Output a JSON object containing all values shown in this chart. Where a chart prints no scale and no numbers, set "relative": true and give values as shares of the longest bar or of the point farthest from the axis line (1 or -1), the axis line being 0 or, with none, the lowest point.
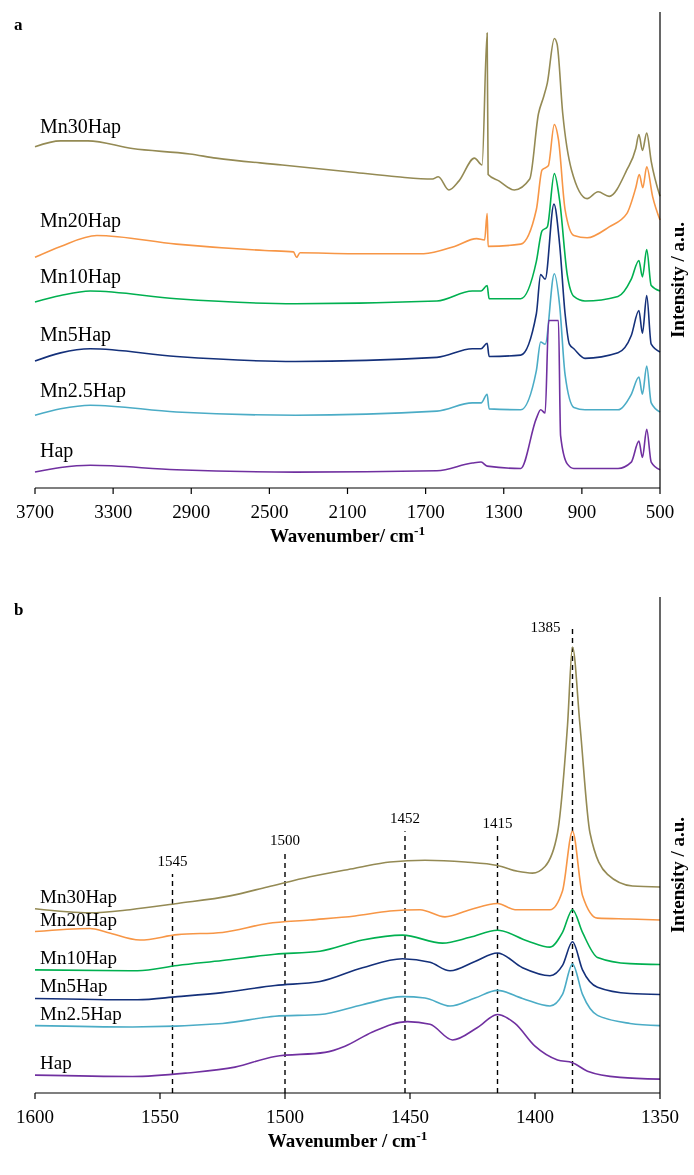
{
  "chart_data": [
    {
      "type": "line",
      "title": "a",
      "xlabel": "Wavenumber/ cm$^{-1}$",
      "ylabel": "Intensity / a.u.",
      "relative": true,
      "xlim": [
        3700,
        500
      ],
      "xticks": [
        3700,
        3300,
        2900,
        2500,
        2100,
        1700,
        1300,
        900,
        500
      ],
      "series": [
        {
          "name": "Mn30Hap",
          "color": "#948a54",
          "x": [
            3700,
            3569,
            3429,
            3202,
            2908,
            2773,
            2434,
            2072,
            1846,
            1665,
            1635,
            1581,
            1529,
            1450,
            1411,
            1385,
            1380,
            1325,
            1246,
            1167,
            1122,
            1095,
            1077,
            1041,
            1027,
            998,
            953,
            873,
            817,
            760,
            670,
            624,
            608,
            590,
            568,
            545,
            500
          ],
          "values": [
            0.75,
            0.763,
            0.763,
            0.746,
            0.734,
            0.725,
            0.71,
            0.694,
            0.684,
            0.679,
            0.684,
            0.655,
            0.675,
            0.725,
            0.71,
            1.0,
            0.689,
            0.675,
            0.655,
            0.679,
            0.823,
            0.861,
            0.89,
            0.988,
            0.976,
            0.823,
            0.699,
            0.636,
            0.651,
            0.641,
            0.699,
            0.746,
            0.777,
            0.742,
            0.78,
            0.718,
            0.641
          ]
        },
        {
          "name": "Mn20Hap",
          "color": "#f79646",
          "x": [
            3700,
            3569,
            3383,
            2976,
            2524,
            2377,
            2361,
            2343,
            2072,
            1710,
            1552,
            1439,
            1398,
            1385,
            1380,
            1213,
            1133,
            1104,
            1072,
            1041,
            1020,
            986,
            941,
            873,
            760,
            670,
            624,
            606,
            588,
            568,
            538,
            500
          ],
          "values": [
            0.507,
            0.531,
            0.555,
            0.536,
            0.522,
            0.519,
            0.507,
            0.517,
            0.515,
            0.515,
            0.531,
            0.548,
            0.545,
            0.603,
            0.531,
            0.536,
            0.612,
            0.699,
            0.708,
            0.799,
            0.766,
            0.612,
            0.555,
            0.55,
            0.574,
            0.603,
            0.66,
            0.689,
            0.66,
            0.706,
            0.641,
            0.589
          ]
        },
        {
          "name": "Mn10Hap",
          "color": "#00b050",
          "x": [
            3700,
            3569,
            3417,
            2976,
            2366,
            1642,
            1461,
            1416,
            1385,
            1375,
            1213,
            1133,
            1104,
            1077,
            1041,
            1014,
            975,
            941,
            884,
            715,
            647,
            608,
            590,
            568,
            545,
            500
          ],
          "values": [
            0.409,
            0.423,
            0.433,
            0.416,
            0.405,
            0.411,
            0.433,
            0.433,
            0.445,
            0.416,
            0.416,
            0.498,
            0.565,
            0.574,
            0.691,
            0.632,
            0.469,
            0.421,
            0.411,
            0.421,
            0.459,
            0.5,
            0.464,
            0.524,
            0.445,
            0.433
          ]
        },
        {
          "name": "Mn5Hap",
          "color": "#14307a",
          "x": [
            3700,
            3569,
            3417,
            2976,
            2366,
            1642,
            1461,
            1416,
            1385,
            1375,
            1213,
            1133,
            1111,
            1088,
            1043,
            1014,
            986,
            964,
            941,
            884,
            715,
            647,
            608,
            590,
            568,
            545,
            500
          ],
          "values": [
            0.279,
            0.297,
            0.306,
            0.289,
            0.278,
            0.287,
            0.306,
            0.306,
            0.318,
            0.289,
            0.292,
            0.383,
            0.469,
            0.459,
            0.624,
            0.536,
            0.383,
            0.316,
            0.306,
            0.285,
            0.297,
            0.335,
            0.39,
            0.34,
            0.423,
            0.316,
            0.299
          ]
        },
        {
          "name": "Mn2.5Hap",
          "color": "#4bacc6",
          "x": [
            3700,
            3569,
            3417,
            2976,
            2366,
            1642,
            1461,
            1416,
            1385,
            1375,
            1213,
            1133,
            1111,
            1088,
            1041,
            1014,
            986,
            941,
            884,
            715,
            647,
            608,
            590,
            568,
            545,
            500
          ],
          "values": [
            0.16,
            0.174,
            0.182,
            0.167,
            0.16,
            0.169,
            0.187,
            0.187,
            0.206,
            0.174,
            0.172,
            0.258,
            0.321,
            0.316,
            0.471,
            0.402,
            0.249,
            0.177,
            0.172,
            0.172,
            0.206,
            0.244,
            0.206,
            0.268,
            0.187,
            0.167
          ]
        },
        {
          "name": "Hap",
          "color": "#7030a0",
          "x": [
            3700,
            3569,
            3417,
            2976,
            2366,
            1642,
            1461,
            1416,
            1385,
            1213,
            1133,
            1111,
            1088,
            1070,
            1020,
            1009,
            975,
            941,
            715,
            647,
            608,
            590,
            568,
            545,
            500
          ],
          "values": [
            0.035,
            0.045,
            0.05,
            0.04,
            0.035,
            0.038,
            0.055,
            0.057,
            0.048,
            0.043,
            0.153,
            0.172,
            0.165,
            0.368,
            0.368,
            0.115,
            0.053,
            0.043,
            0.043,
            0.057,
            0.103,
            0.067,
            0.129,
            0.057,
            0.04
          ]
        }
      ]
    },
    {
      "type": "line",
      "title": "b",
      "xlabel": "Wavenumber / cm$^{-1}$",
      "ylabel": "Intensity / a.u.",
      "relative": true,
      "xlim": [
        1600,
        1350
      ],
      "xticks": [
        1600,
        1550,
        1500,
        1450,
        1400,
        1350
      ],
      "ref_lines": [
        {
          "axis": "x",
          "value": 1545,
          "label": "1545",
          "line_style": "dashed"
        },
        {
          "axis": "x",
          "value": 1500,
          "label": "1500",
          "line_style": "dashed"
        },
        {
          "axis": "x",
          "value": 1452,
          "label": "1452",
          "line_style": "dashed"
        },
        {
          "axis": "x",
          "value": 1415,
          "label": "1415",
          "line_style": "dashed"
        },
        {
          "axis": "x",
          "value": 1385,
          "label": "1385",
          "line_style": "dashed"
        }
      ],
      "series": [
        {
          "name": "Mn30Hap",
          "color": "#948a54",
          "x": [
            1600,
            1578,
            1562,
            1543,
            1522,
            1507,
            1490,
            1472,
            1458,
            1444,
            1428,
            1415,
            1407,
            1401,
            1396,
            1391,
            1387,
            1385,
            1382,
            1378,
            1371,
            1361,
            1350
          ],
          "values": [
            0.413,
            0.404,
            0.411,
            0.425,
            0.442,
            0.462,
            0.485,
            0.504,
            0.518,
            0.522,
            0.518,
            0.51,
            0.497,
            0.493,
            0.508,
            0.583,
            0.824,
            1.0,
            0.824,
            0.583,
            0.49,
            0.464,
            0.462
          ]
        },
        {
          "name": "Mn20Hap",
          "color": "#f79646",
          "x": [
            1600,
            1578,
            1571,
            1558,
            1543,
            1525,
            1507,
            1490,
            1472,
            1458,
            1446,
            1436,
            1426,
            1415,
            1408,
            1394,
            1389,
            1385,
            1381,
            1375,
            1362,
            1350
          ],
          "values": [
            0.362,
            0.369,
            0.36,
            0.343,
            0.355,
            0.36,
            0.38,
            0.388,
            0.397,
            0.408,
            0.411,
            0.395,
            0.411,
            0.425,
            0.411,
            0.411,
            0.453,
            0.587,
            0.443,
            0.392,
            0.39,
            0.388
          ]
        },
        {
          "name": "Mn10Hap",
          "color": "#00b050",
          "x": [
            1600,
            1559,
            1543,
            1525,
            1504,
            1486,
            1469,
            1453,
            1437,
            1426,
            1415,
            1403,
            1394,
            1389,
            1385,
            1381,
            1375,
            1362,
            1350
          ],
          "values": [
            0.276,
            0.274,
            0.286,
            0.297,
            0.311,
            0.318,
            0.343,
            0.354,
            0.336,
            0.349,
            0.365,
            0.341,
            0.327,
            0.36,
            0.411,
            0.36,
            0.304,
            0.29,
            0.288
          ]
        },
        {
          "name": "Mn5Hap",
          "color": "#14307a",
          "x": [
            1600,
            1559,
            1543,
            1525,
            1504,
            1486,
            1469,
            1453,
            1442,
            1434,
            1424,
            1415,
            1405,
            1394,
            1389,
            1385,
            1381,
            1375,
            1362,
            1350
          ],
          "values": [
            0.212,
            0.209,
            0.216,
            0.225,
            0.241,
            0.25,
            0.281,
            0.301,
            0.293,
            0.274,
            0.295,
            0.314,
            0.281,
            0.263,
            0.286,
            0.339,
            0.276,
            0.237,
            0.223,
            0.221
          ]
        },
        {
          "name": "Mn2.5Hap",
          "color": "#4bacc6",
          "x": [
            1600,
            1561,
            1525,
            1504,
            1486,
            1469,
            1453,
            1444,
            1434,
            1424,
            1415,
            1405,
            1394,
            1389,
            1385,
            1381,
            1375,
            1362,
            1350
          ],
          "values": [
            0.151,
            0.148,
            0.156,
            0.172,
            0.176,
            0.198,
            0.216,
            0.213,
            0.195,
            0.213,
            0.23,
            0.212,
            0.195,
            0.221,
            0.289,
            0.221,
            0.174,
            0.156,
            0.151
          ]
        },
        {
          "name": "Hap",
          "color": "#7030a0",
          "x": [
            1600,
            1561,
            1539,
            1520,
            1504,
            1484,
            1476,
            1465,
            1451,
            1442,
            1433,
            1423,
            1415,
            1408,
            1400,
            1391,
            1385,
            1379,
            1366,
            1350
          ],
          "values": [
            0.04,
            0.037,
            0.045,
            0.058,
            0.082,
            0.091,
            0.105,
            0.137,
            0.16,
            0.154,
            0.119,
            0.147,
            0.176,
            0.156,
            0.105,
            0.074,
            0.068,
            0.049,
            0.035,
            0.031
          ]
        }
      ]
    }
  ]
}
